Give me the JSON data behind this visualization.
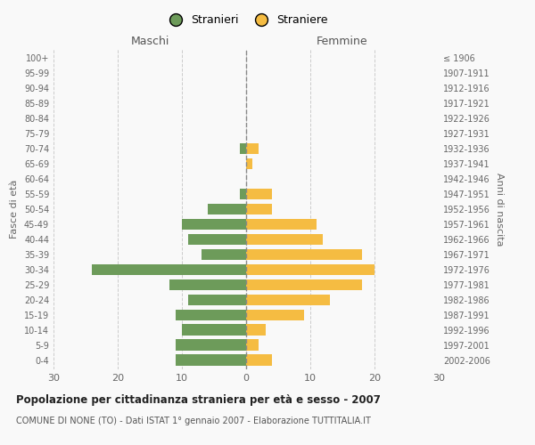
{
  "age_groups": [
    "0-4",
    "5-9",
    "10-14",
    "15-19",
    "20-24",
    "25-29",
    "30-34",
    "35-39",
    "40-44",
    "45-49",
    "50-54",
    "55-59",
    "60-64",
    "65-69",
    "70-74",
    "75-79",
    "80-84",
    "85-89",
    "90-94",
    "95-99",
    "100+"
  ],
  "birth_years": [
    "2002-2006",
    "1997-2001",
    "1992-1996",
    "1987-1991",
    "1982-1986",
    "1977-1981",
    "1972-1976",
    "1967-1971",
    "1962-1966",
    "1957-1961",
    "1952-1956",
    "1947-1951",
    "1942-1946",
    "1937-1941",
    "1932-1936",
    "1927-1931",
    "1922-1926",
    "1917-1921",
    "1912-1916",
    "1907-1911",
    "≤ 1906"
  ],
  "males": [
    11,
    11,
    10,
    11,
    9,
    12,
    24,
    7,
    9,
    10,
    6,
    1,
    0,
    0,
    1,
    0,
    0,
    0,
    0,
    0,
    0
  ],
  "females": [
    4,
    2,
    3,
    9,
    13,
    18,
    20,
    18,
    12,
    11,
    4,
    4,
    0,
    1,
    2,
    0,
    0,
    0,
    0,
    0,
    0
  ],
  "male_color": "#6d9b5a",
  "female_color": "#f5bc42",
  "legend_male": "Stranieri",
  "legend_female": "Straniere",
  "xlabel_left": "Maschi",
  "xlabel_right": "Femmine",
  "ylabel_left": "Fasce di età",
  "ylabel_right": "Anni di nascita",
  "title": "Popolazione per cittadinanza straniera per età e sesso - 2007",
  "subtitle": "COMUNE DI NONE (TO) - Dati ISTAT 1° gennaio 2007 - Elaborazione TUTTITALIA.IT",
  "xlim": 30,
  "bg_color": "#f9f9f9",
  "grid_color": "#cccccc"
}
